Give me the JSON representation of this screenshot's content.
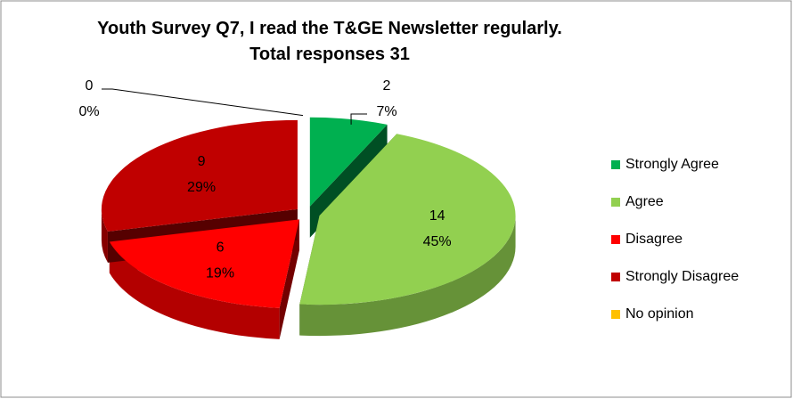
{
  "chart_data": {
    "type": "pie",
    "title": "Youth Survey Q7, I read the T&GE Newsletter regularly. Total responses 31",
    "categories": [
      "Strongly Agree",
      "Agree",
      "Disagree",
      "Strongly Disagree",
      "No opinion"
    ],
    "values": [
      2,
      14,
      6,
      9,
      0
    ],
    "percentages": [
      7,
      45,
      19,
      29,
      0
    ],
    "percentage_labels": [
      "7%",
      "45%",
      "19%",
      "29%",
      "0%"
    ],
    "colors": [
      "#00b050",
      "#92d050",
      "#ff0000",
      "#c00000",
      "#ffc000"
    ],
    "legend": "right"
  }
}
